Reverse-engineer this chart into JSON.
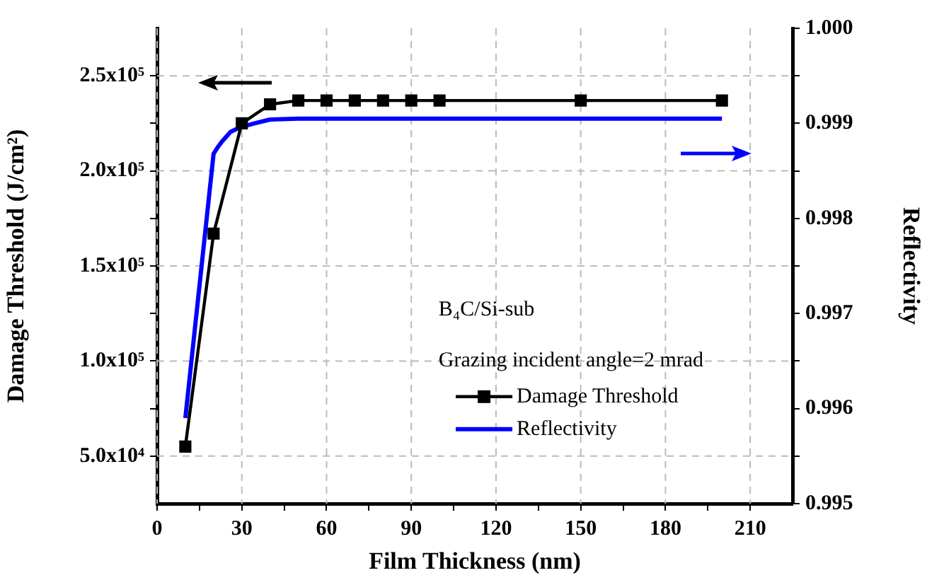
{
  "chart_data": {
    "type": "line",
    "xlabel": "Film Thickness (nm)",
    "ylabel": "Damage Threshold (J/cm²)",
    "y2label": "Reflectivity",
    "xlim": [
      0,
      225
    ],
    "xticks": [
      0,
      {
        "value": 15,
        "label": null
      },
      30,
      {
        "value": 45,
        "label": null
      },
      60,
      {
        "value": 75,
        "label": null
      },
      90,
      {
        "value": 105,
        "label": null
      },
      120,
      {
        "value": 135,
        "label": null
      },
      150,
      {
        "value": 165,
        "label": null
      },
      180,
      {
        "value": 195,
        "label": null
      },
      210
    ],
    "ylim": [
      25000,
      275000
    ],
    "yticks": [
      {
        "value": 50000,
        "label": "5.0x10⁴"
      },
      {
        "value": 75000,
        "label": null
      },
      {
        "value": 100000,
        "label": "1.0x10⁵"
      },
      {
        "value": 125000,
        "label": null
      },
      {
        "value": 150000,
        "label": "1.5x10⁵"
      },
      {
        "value": 175000,
        "label": null
      },
      {
        "value": 200000,
        "label": "2.0x10⁵"
      },
      {
        "value": 225000,
        "label": null
      },
      {
        "value": 250000,
        "label": "2.5x10⁵"
      }
    ],
    "y2lim": [
      0.995,
      1.0
    ],
    "y2ticks": [
      0.995,
      {
        "value": 0.9955,
        "label": null
      },
      0.996,
      {
        "value": 0.9965,
        "label": null
      },
      0.997,
      {
        "value": 0.9975,
        "label": null
      },
      0.998,
      {
        "value": 0.9985,
        "label": null
      },
      0.999,
      {
        "value": 0.9995,
        "label": null
      },
      {
        "value": 1.0,
        "label": "1.000"
      }
    ],
    "grid": true,
    "legend": "bottom right",
    "annotations": [
      "B₄C/Si-sub",
      "Grazing incident angle=2 mrad"
    ],
    "series": [
      {
        "name": "Damage Threshold",
        "color": "#000000",
        "marker": "square",
        "x": [
          10,
          20,
          30,
          40,
          50,
          60,
          70,
          80,
          90,
          100,
          150,
          200
        ],
        "values": [
          55000,
          167000,
          225000,
          235000,
          237000,
          237000,
          237000,
          237000,
          237000,
          237000,
          237000,
          237000
        ]
      },
      {
        "name": "Reflectivity",
        "color": "#0000ff",
        "axis": "y2",
        "marker": "none",
        "x": [
          10,
          20,
          21.5,
          23,
          26,
          29.5,
          34.5,
          40,
          50,
          200
        ],
        "values": [
          0.9959,
          0.99868,
          0.99875,
          0.99881,
          0.99891,
          0.99896,
          0.999,
          0.99904,
          0.99905,
          0.99905
        ]
      }
    ]
  }
}
